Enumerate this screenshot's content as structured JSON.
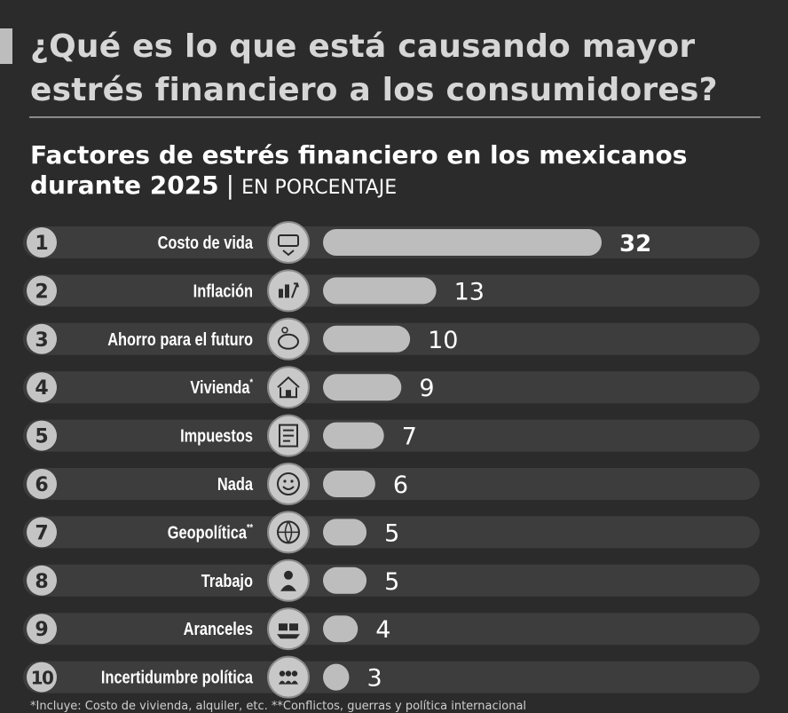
{
  "heading": "¿Qué es lo que está causando mayor estrés financiero a los consumidores?",
  "subtitle": {
    "main": "Factores de estrés financiero en los mexicanos durante 2025",
    "separator": "|",
    "unit": "EN PORCENTAJE"
  },
  "footnote": "*Incluye: Costo de vivienda, alquiler, etc. **Conflictos, guerras y política internacional",
  "chart_data": {
    "type": "bar",
    "orientation": "horizontal",
    "title": "Factores de estrés financiero en los mexicanos durante 2025",
    "unit": "EN PORCENTAJE",
    "ranks": [
      "1",
      "2",
      "3",
      "4",
      "5",
      "6",
      "7",
      "8",
      "9",
      "10"
    ],
    "categories": [
      "Costo de vida",
      "Inflación",
      "Ahorro para el futuro",
      "Vivienda",
      "Impuestos",
      "Nada",
      "Geopolítica",
      "Trabajo",
      "Aranceles",
      "Incertidumbre política"
    ],
    "label_marks": [
      "",
      "",
      "",
      "*",
      "",
      "",
      "**",
      "",
      "",
      ""
    ],
    "values": [
      32,
      13,
      10,
      9,
      7,
      6,
      5,
      5,
      4,
      3
    ],
    "icons": [
      "money-heart-icon",
      "inflation-chart-icon",
      "piggy-bank-icon",
      "house-icon",
      "tax-document-icon",
      "smiley-face-icon",
      "globe-icon",
      "worker-icon",
      "cargo-icon",
      "people-group-icon"
    ],
    "xlim": [
      0,
      32
    ],
    "colors": {
      "bar": "#bdbdbd",
      "track": "#3d3d3d",
      "rank_circle": "#c4c4c4",
      "icon_circle": "#c8c8c8"
    }
  }
}
